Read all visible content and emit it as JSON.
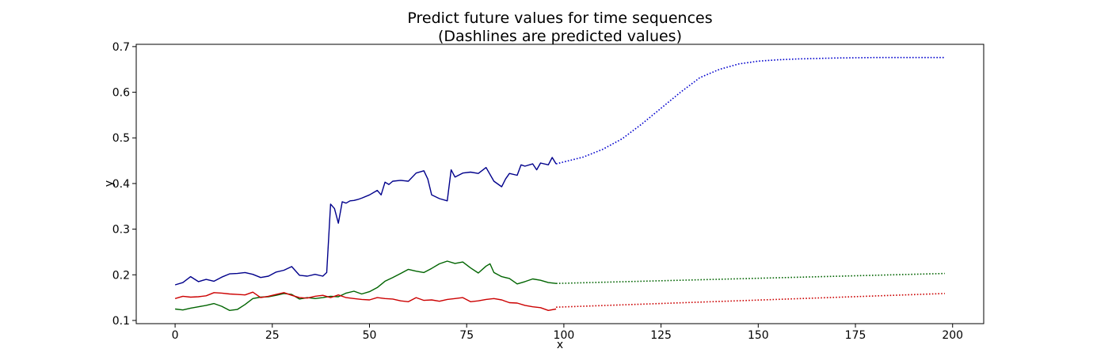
{
  "chart_data": {
    "type": "line",
    "title": "Predict future values for time sequences",
    "subtitle": "(Dashlines are predicted values)",
    "xlabel": "x",
    "ylabel": "y",
    "xlim": [
      -10,
      208
    ],
    "ylim": [
      0.093,
      0.705
    ],
    "xticks": [
      0,
      25,
      50,
      75,
      100,
      125,
      150,
      175,
      200
    ],
    "yticks": [
      0.1,
      0.2,
      0.3,
      0.4,
      0.5,
      0.6,
      0.7
    ],
    "xtick_labels": [
      "0",
      "25",
      "50",
      "75",
      "100",
      "125",
      "150",
      "175",
      "200"
    ],
    "ytick_labels": [
      "0.1",
      "0.2",
      "0.3",
      "0.4",
      "0.5",
      "0.6",
      "0.7"
    ],
    "grid": false,
    "legend": "none",
    "series": [
      {
        "color": "#00008b",
        "style": "solid",
        "x": [
          0,
          2,
          4,
          6,
          8,
          10,
          12,
          14,
          16,
          18,
          20,
          22,
          24,
          26,
          28,
          30,
          32,
          34,
          36,
          38,
          39,
          40,
          41,
          42,
          43,
          44,
          45,
          46,
          47,
          48,
          50,
          52,
          53,
          54,
          55,
          56,
          58,
          60,
          62,
          64,
          65,
          66,
          68,
          70,
          71,
          72,
          74,
          76,
          78,
          80,
          82,
          84,
          85,
          86,
          88,
          89,
          90,
          92,
          93,
          94,
          96,
          97,
          98
        ],
        "y": [
          0.178,
          0.183,
          0.196,
          0.185,
          0.19,
          0.186,
          0.195,
          0.202,
          0.203,
          0.205,
          0.201,
          0.194,
          0.197,
          0.206,
          0.21,
          0.218,
          0.199,
          0.197,
          0.201,
          0.197,
          0.205,
          0.355,
          0.345,
          0.313,
          0.36,
          0.357,
          0.362,
          0.363,
          0.365,
          0.368,
          0.375,
          0.385,
          0.375,
          0.403,
          0.398,
          0.405,
          0.407,
          0.405,
          0.423,
          0.428,
          0.41,
          0.375,
          0.367,
          0.362,
          0.43,
          0.414,
          0.423,
          0.425,
          0.422,
          0.435,
          0.405,
          0.393,
          0.41,
          0.422,
          0.418,
          0.441,
          0.438,
          0.443,
          0.43,
          0.445,
          0.441,
          0.457,
          0.443
        ]
      },
      {
        "color": "#006400",
        "style": "solid",
        "x": [
          0,
          2,
          4,
          6,
          8,
          10,
          12,
          14,
          16,
          18,
          20,
          22,
          24,
          26,
          28,
          30,
          32,
          34,
          36,
          38,
          40,
          42,
          44,
          46,
          48,
          50,
          52,
          54,
          56,
          58,
          60,
          62,
          64,
          66,
          68,
          70,
          72,
          74,
          76,
          78,
          80,
          81,
          82,
          84,
          86,
          88,
          90,
          92,
          94,
          96,
          98
        ],
        "y": [
          0.125,
          0.123,
          0.127,
          0.13,
          0.133,
          0.137,
          0.131,
          0.122,
          0.124,
          0.135,
          0.148,
          0.151,
          0.152,
          0.155,
          0.159,
          0.157,
          0.147,
          0.15,
          0.148,
          0.15,
          0.153,
          0.152,
          0.16,
          0.164,
          0.158,
          0.163,
          0.172,
          0.186,
          0.194,
          0.203,
          0.212,
          0.208,
          0.205,
          0.214,
          0.224,
          0.23,
          0.225,
          0.228,
          0.215,
          0.204,
          0.219,
          0.224,
          0.205,
          0.196,
          0.192,
          0.18,
          0.185,
          0.191,
          0.188,
          0.183,
          0.181
        ]
      },
      {
        "color": "#cc0000",
        "style": "solid",
        "x": [
          0,
          2,
          4,
          6,
          8,
          10,
          12,
          14,
          16,
          18,
          20,
          22,
          24,
          26,
          28,
          30,
          32,
          34,
          36,
          38,
          40,
          42,
          44,
          46,
          48,
          50,
          52,
          54,
          56,
          58,
          60,
          62,
          64,
          66,
          68,
          70,
          72,
          74,
          76,
          78,
          80,
          82,
          84,
          86,
          88,
          90,
          92,
          94,
          96,
          98
        ],
        "y": [
          0.148,
          0.153,
          0.151,
          0.152,
          0.154,
          0.161,
          0.16,
          0.158,
          0.157,
          0.156,
          0.162,
          0.15,
          0.153,
          0.157,
          0.161,
          0.155,
          0.15,
          0.149,
          0.153,
          0.155,
          0.15,
          0.156,
          0.15,
          0.148,
          0.146,
          0.145,
          0.15,
          0.148,
          0.147,
          0.143,
          0.141,
          0.15,
          0.144,
          0.145,
          0.142,
          0.146,
          0.148,
          0.15,
          0.141,
          0.143,
          0.146,
          0.148,
          0.145,
          0.139,
          0.138,
          0.133,
          0.13,
          0.128,
          0.122,
          0.125
        ]
      },
      {
        "color": "#0000cd",
        "style": "dotted",
        "x": [
          98,
          105,
          110,
          115,
          120,
          125,
          130,
          135,
          140,
          145,
          150,
          155,
          160,
          165,
          170,
          180,
          190,
          198
        ],
        "y": [
          0.443,
          0.458,
          0.475,
          0.498,
          0.53,
          0.565,
          0.6,
          0.632,
          0.65,
          0.662,
          0.668,
          0.671,
          0.673,
          0.674,
          0.675,
          0.676,
          0.676,
          0.676
        ]
      },
      {
        "color": "#006400",
        "style": "dotted",
        "x": [
          98,
          198
        ],
        "y": [
          0.181,
          0.203
        ]
      },
      {
        "color": "#cc0000",
        "style": "dotted",
        "x": [
          98,
          198
        ],
        "y": [
          0.129,
          0.159
        ]
      }
    ]
  }
}
